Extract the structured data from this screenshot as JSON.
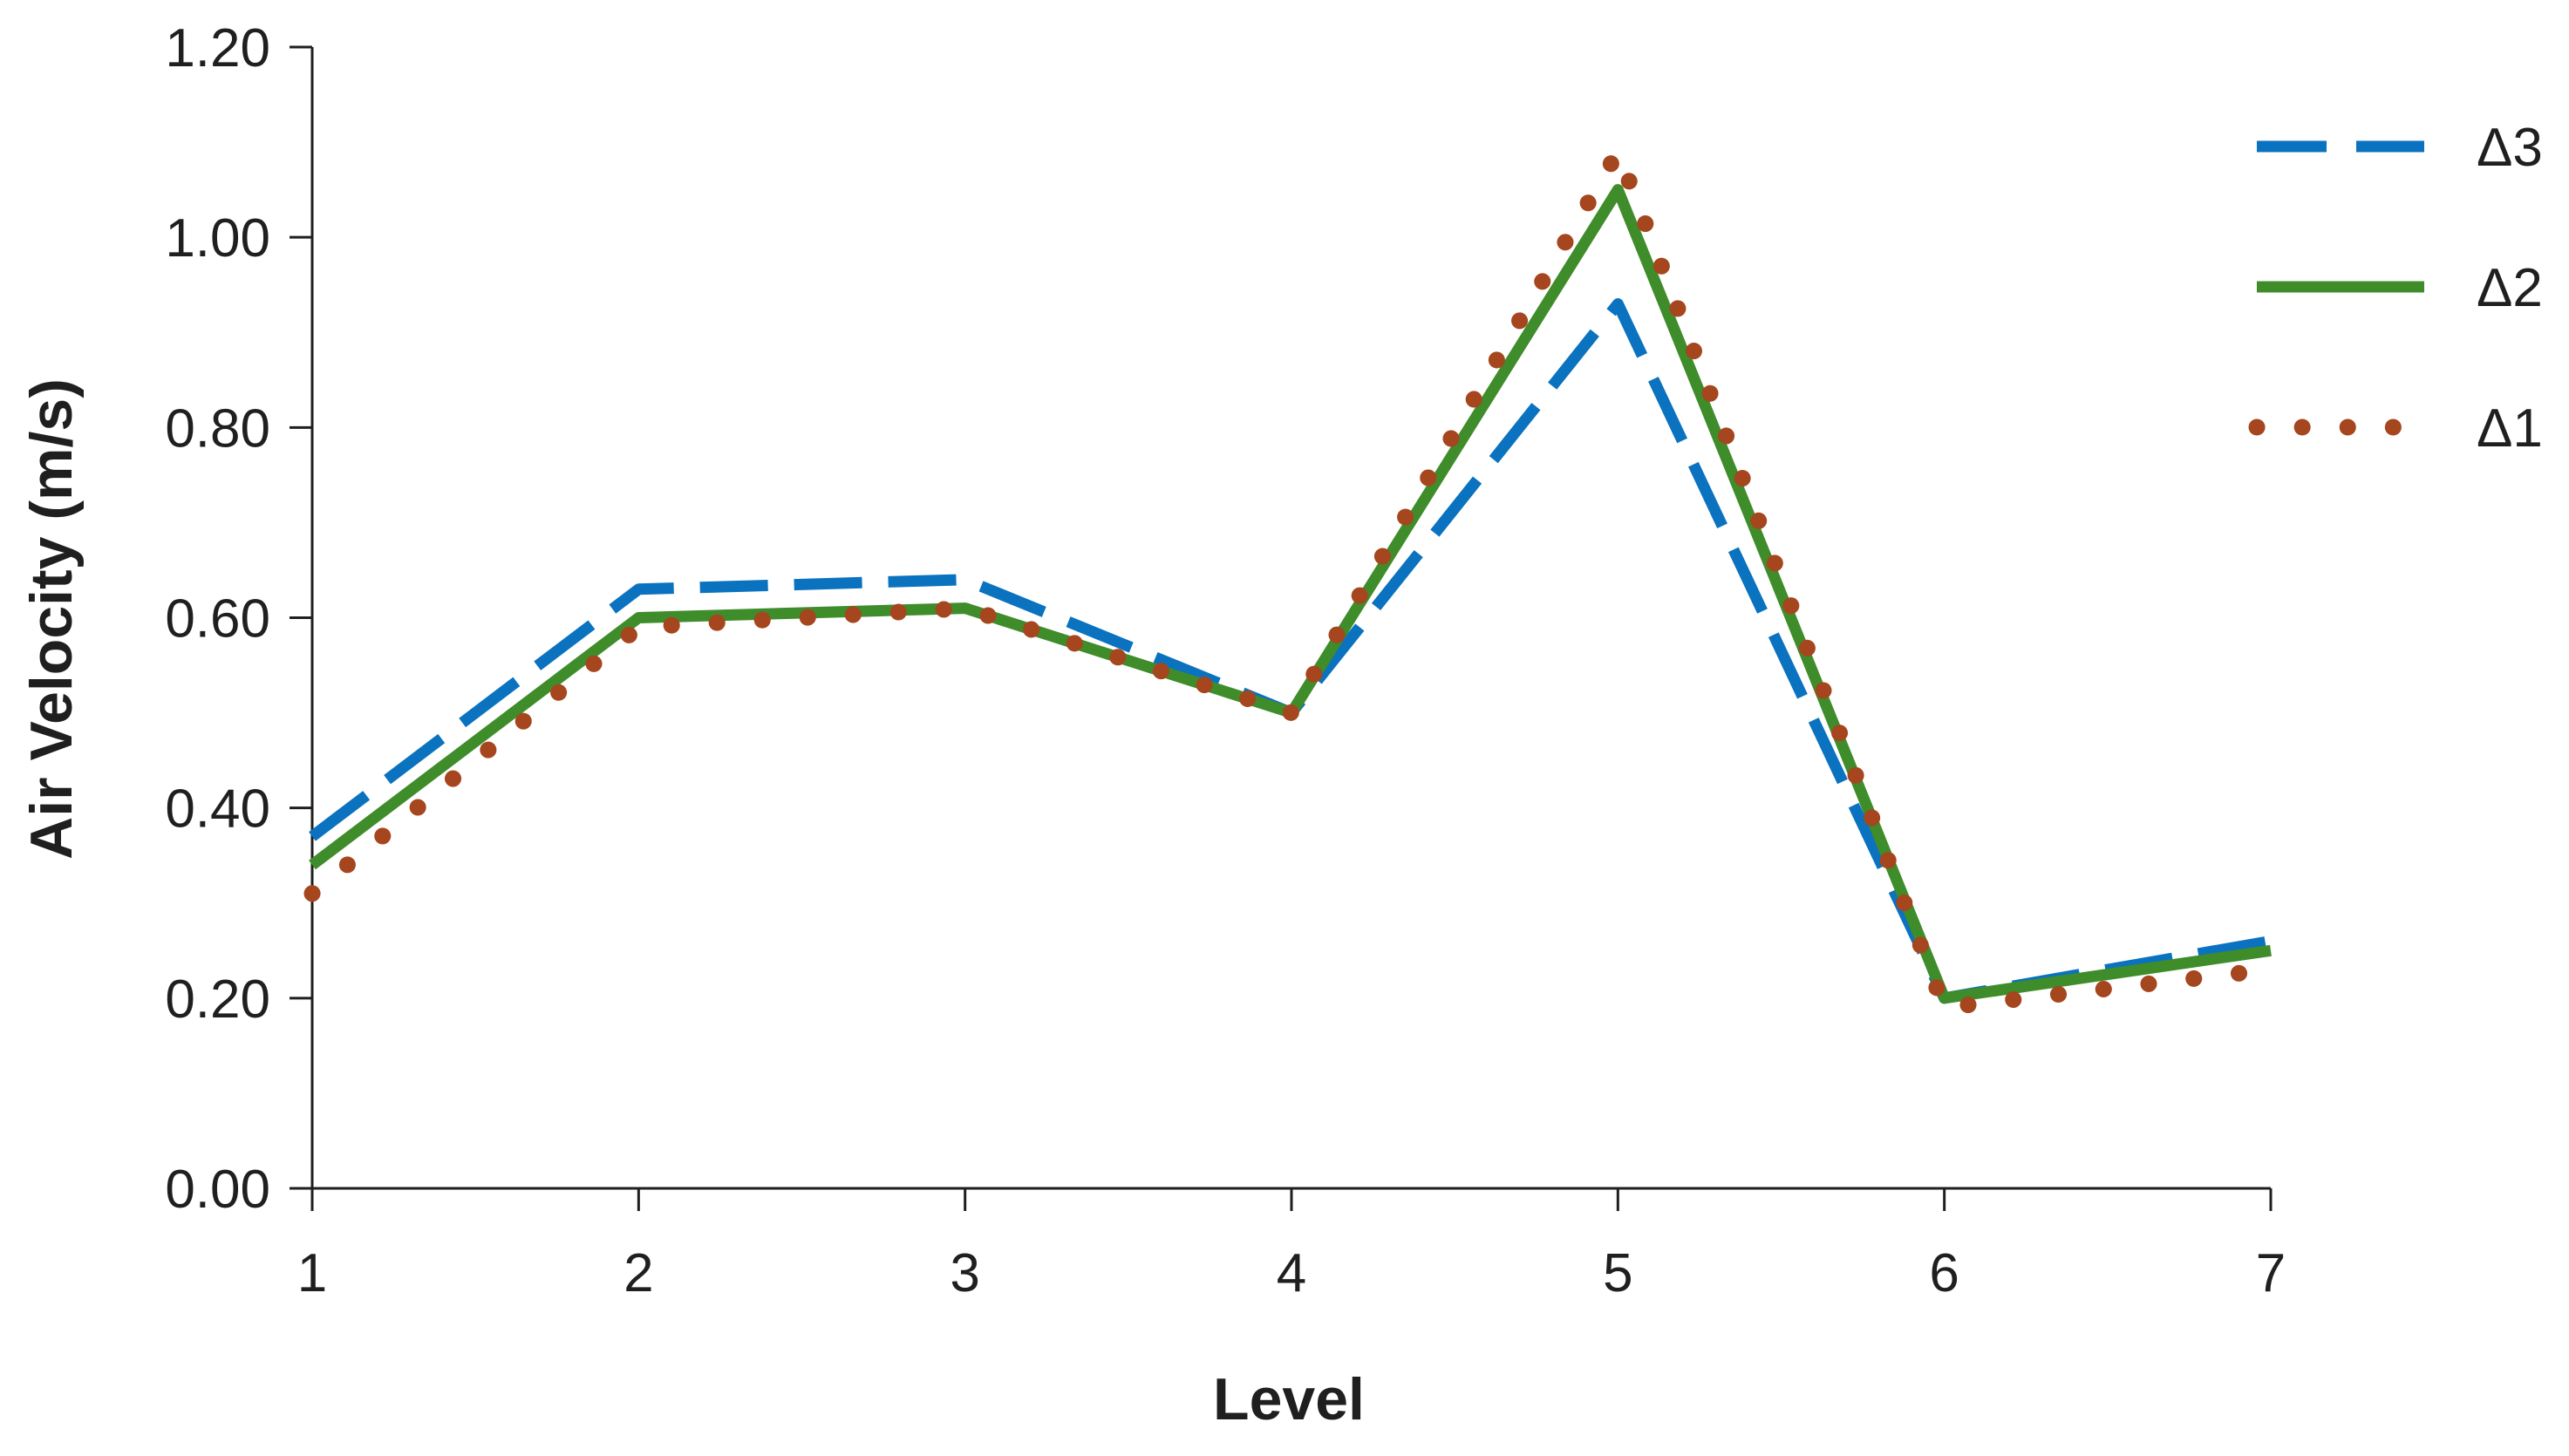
{
  "chart_data": {
    "type": "line",
    "title": "",
    "xlabel": "Level",
    "ylabel": "Air Velocity (m/s)",
    "categories": [
      "1",
      "2",
      "3",
      "4",
      "5",
      "6",
      "7"
    ],
    "ylim": [
      0,
      1.2
    ],
    "yticks": [
      "0.00",
      "0.20",
      "0.40",
      "0.60",
      "0.80",
      "1.00",
      "1.20"
    ],
    "grid": false,
    "legend_position": "top-right",
    "series": [
      {
        "name": "Δ3",
        "values": [
          0.37,
          0.63,
          0.64,
          0.5,
          0.93,
          0.2,
          0.26
        ],
        "color": "#0a72bf",
        "style": "dashed"
      },
      {
        "name": "Δ2",
        "values": [
          0.34,
          0.6,
          0.61,
          0.5,
          1.05,
          0.2,
          0.25
        ],
        "color": "#3f8c2a",
        "style": "solid"
      },
      {
        "name": "Δ1",
        "values": [
          0.31,
          0.59,
          0.61,
          0.5,
          1.09,
          0.19,
          0.23
        ],
        "color": "#a5461e",
        "style": "dotted"
      }
    ]
  }
}
